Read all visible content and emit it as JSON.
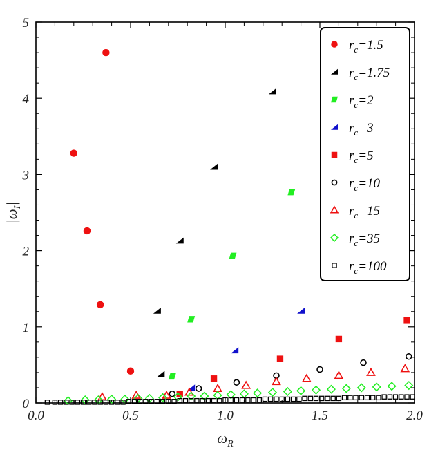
{
  "chart_data": {
    "type": "scatter",
    "title": "",
    "xlabel": "ωR",
    "ylabel": "|ωI|",
    "xlim": [
      0,
      2
    ],
    "ylim": [
      0,
      5
    ],
    "grid": false,
    "legend_position": "top-right",
    "x_ticks": [
      {
        "value": 0,
        "label": "0.0"
      },
      {
        "value": 0.5,
        "label": "0.5"
      },
      {
        "value": 1,
        "label": "1.0"
      },
      {
        "value": 1.5,
        "label": "1.5"
      },
      {
        "value": 2,
        "label": "2.0"
      }
    ],
    "y_ticks": [
      {
        "value": 0,
        "label": "0"
      },
      {
        "value": 1,
        "label": "1"
      },
      {
        "value": 2,
        "label": "2"
      },
      {
        "value": 3,
        "label": "3"
      },
      {
        "value": 4,
        "label": "4"
      },
      {
        "value": 5,
        "label": "5"
      }
    ],
    "series": [
      {
        "name": "rc=1.5",
        "color": "#ee1111",
        "marker": "filled-circle",
        "x": [
          0.37,
          0.2,
          0.27,
          0.34,
          0.5
        ],
        "y": [
          4.6,
          3.28,
          2.26,
          1.29,
          0.42
        ]
      },
      {
        "name": "rc=1.75",
        "color": "#000000",
        "marker": "filled-triangle",
        "x": [
          1.25,
          0.94,
          0.76,
          0.64,
          0.66
        ],
        "y": [
          4.09,
          3.1,
          2.13,
          1.21,
          0.38
        ]
      },
      {
        "name": "rc=2",
        "color": "#22ee22",
        "marker": "filled-parallelogram",
        "x": [
          1.35,
          1.04,
          0.82,
          0.72
        ],
        "y": [
          2.77,
          1.93,
          1.1,
          0.35
        ]
      },
      {
        "name": "rc=3",
        "color": "#1111cc",
        "marker": "filled-triangle",
        "x": [
          1.4,
          1.05,
          0.82
        ],
        "y": [
          1.21,
          0.69,
          0.2
        ]
      },
      {
        "name": "rc=5",
        "color": "#ee1111",
        "marker": "filled-square",
        "x": [
          1.96,
          1.6,
          1.29,
          0.94,
          0.76
        ],
        "y": [
          1.09,
          0.84,
          0.58,
          0.32,
          0.12
        ]
      },
      {
        "name": "rc=10",
        "color": "#000000",
        "marker": "open-circle",
        "x": [
          1.97,
          1.73,
          1.5,
          1.27,
          1.06,
          0.86,
          0.72
        ],
        "y": [
          0.61,
          0.53,
          0.44,
          0.36,
          0.27,
          0.19,
          0.12
        ]
      },
      {
        "name": "rc=15",
        "color": "#ee1111",
        "marker": "open-triangle",
        "x": [
          1.95,
          1.77,
          1.6,
          1.43,
          1.27,
          1.11,
          0.96,
          0.81,
          0.69,
          0.53,
          0.35
        ],
        "y": [
          0.45,
          0.4,
          0.36,
          0.32,
          0.28,
          0.23,
          0.19,
          0.14,
          0.1,
          0.1,
          0.08
        ]
      },
      {
        "name": "rc=35",
        "color": "#22ee22",
        "marker": "open-diamond",
        "x": [
          0.17,
          0.26,
          0.33,
          0.4,
          0.47,
          0.54,
          0.6,
          0.67,
          0.75,
          0.82,
          0.89,
          0.96,
          1.03,
          1.1,
          1.17,
          1.25,
          1.33,
          1.4,
          1.48,
          1.56,
          1.64,
          1.72,
          1.8,
          1.88,
          1.97
        ],
        "y": [
          0.03,
          0.04,
          0.04,
          0.05,
          0.05,
          0.06,
          0.06,
          0.07,
          0.08,
          0.09,
          0.09,
          0.1,
          0.11,
          0.12,
          0.13,
          0.14,
          0.15,
          0.16,
          0.17,
          0.18,
          0.19,
          0.2,
          0.21,
          0.22,
          0.23
        ]
      },
      {
        "name": "rc=100",
        "color": "#000000",
        "marker": "open-square",
        "x": [
          0.06,
          0.1,
          0.13,
          0.16,
          0.19,
          0.22,
          0.25,
          0.28,
          0.31,
          0.34,
          0.37,
          0.4,
          0.43,
          0.46,
          0.49,
          0.52,
          0.55,
          0.58,
          0.61,
          0.64,
          0.67,
          0.7,
          0.73,
          0.76,
          0.79,
          0.82,
          0.85,
          0.88,
          0.91,
          0.94,
          0.97,
          1.0,
          1.03,
          1.06,
          1.09,
          1.12,
          1.15,
          1.18,
          1.21,
          1.24,
          1.27,
          1.3,
          1.33,
          1.36,
          1.39,
          1.42,
          1.45,
          1.48,
          1.51,
          1.54,
          1.57,
          1.6,
          1.63,
          1.66,
          1.69,
          1.72,
          1.75,
          1.78,
          1.81,
          1.84,
          1.87,
          1.9,
          1.93,
          1.96,
          1.99
        ],
        "y": [
          0.01,
          0.01,
          0.01,
          0.01,
          0.01,
          0.01,
          0.01,
          0.01,
          0.01,
          0.01,
          0.01,
          0.01,
          0.01,
          0.01,
          0.02,
          0.02,
          0.02,
          0.02,
          0.02,
          0.02,
          0.02,
          0.02,
          0.02,
          0.03,
          0.03,
          0.03,
          0.03,
          0.03,
          0.03,
          0.03,
          0.03,
          0.04,
          0.04,
          0.04,
          0.04,
          0.04,
          0.04,
          0.04,
          0.05,
          0.05,
          0.05,
          0.05,
          0.05,
          0.05,
          0.05,
          0.06,
          0.06,
          0.06,
          0.06,
          0.06,
          0.06,
          0.06,
          0.07,
          0.07,
          0.07,
          0.07,
          0.07,
          0.07,
          0.07,
          0.08,
          0.08,
          0.08,
          0.08,
          0.08,
          0.08
        ]
      }
    ],
    "legend": [
      {
        "label": "rc=1.5",
        "marker": "filled-circle",
        "color": "#ee1111"
      },
      {
        "label": "rc=1.75",
        "marker": "filled-triangle",
        "color": "#000000"
      },
      {
        "label": "rc=2",
        "marker": "filled-parallelogram",
        "color": "#22ee22"
      },
      {
        "label": "rc=3",
        "marker": "filled-triangle",
        "color": "#1111cc"
      },
      {
        "label": "rc=5",
        "marker": "filled-square",
        "color": "#ee1111"
      },
      {
        "label": "rc=10",
        "marker": "open-circle",
        "color": "#000000"
      },
      {
        "label": "rc=15",
        "marker": "open-triangle",
        "color": "#ee1111"
      },
      {
        "label": "rc=35",
        "marker": "open-diamond",
        "color": "#22ee22"
      },
      {
        "label": "rc=100",
        "marker": "open-square",
        "color": "#000000"
      }
    ]
  }
}
